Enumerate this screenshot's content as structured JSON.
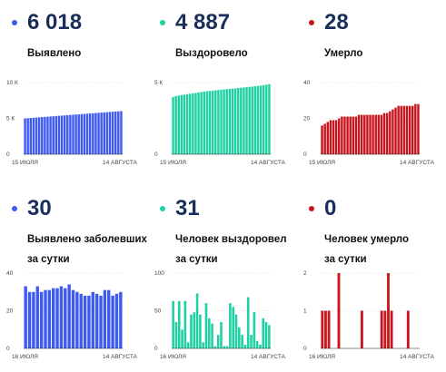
{
  "panels": [
    {
      "color": "#3d5af1",
      "value": "6 018",
      "label_lines": [
        "Выявлено"
      ],
      "chart_data": {
        "type": "bar",
        "ylim": [
          0,
          10000
        ],
        "yticks": [
          {
            "value": 0,
            "label": "0"
          },
          {
            "value": 5000,
            "label": "5 К"
          },
          {
            "value": 10000,
            "label": "10 К"
          }
        ],
        "x_start": "15 ИЮЛЯ",
        "x_end": "14 АВГУСТА",
        "values": [
          4990,
          5030,
          5060,
          5090,
          5120,
          5150,
          5180,
          5210,
          5240,
          5270,
          5300,
          5330,
          5360,
          5390,
          5420,
          5450,
          5480,
          5510,
          5540,
          5570,
          5600,
          5630,
          5660,
          5690,
          5720,
          5750,
          5780,
          5810,
          5840,
          5870,
          5900,
          5930,
          5960,
          5990,
          6018
        ]
      }
    },
    {
      "color": "#1fd0a3",
      "value": "4 887",
      "label_lines": [
        "Выздоровело"
      ],
      "chart_data": {
        "type": "bar",
        "ylim": [
          0,
          5000
        ],
        "yticks": [
          {
            "value": 0,
            "label": "0"
          },
          {
            "value": 5000,
            "label": "5 К"
          }
        ],
        "x_start": "15 ИЮЛЯ",
        "x_end": "14 АВГУСТА",
        "values": [
          3990,
          4060,
          4100,
          4130,
          4160,
          4190,
          4220,
          4250,
          4280,
          4310,
          4340,
          4370,
          4400,
          4420,
          4440,
          4460,
          4480,
          4500,
          4520,
          4540,
          4560,
          4580,
          4600,
          4620,
          4640,
          4660,
          4680,
          4700,
          4720,
          4740,
          4760,
          4790,
          4820,
          4850,
          4887
        ]
      }
    },
    {
      "color": "#c8151d",
      "value": "28",
      "label_lines": [
        "Умерло"
      ],
      "chart_data": {
        "type": "bar",
        "ylim": [
          0,
          40
        ],
        "yticks": [
          {
            "value": 0,
            "label": "0"
          },
          {
            "value": 20,
            "label": "20"
          },
          {
            "value": 40,
            "label": "40"
          }
        ],
        "x_start": "15 ИЮЛЯ",
        "x_end": "14 АВГУСТА",
        "values": [
          16,
          17,
          18,
          19,
          19,
          19,
          20,
          21,
          21,
          21,
          21,
          21,
          21,
          22,
          22,
          22,
          22,
          22,
          22,
          22,
          22,
          22,
          23,
          23,
          24,
          25,
          26,
          27,
          27,
          27,
          27,
          27,
          27,
          28,
          28
        ]
      }
    },
    {
      "color": "#3d5af1",
      "value": "30",
      "label_lines": [
        "Выявлено заболевших",
        "за сутки"
      ],
      "chart_data": {
        "type": "bar",
        "ylim": [
          0,
          40
        ],
        "yticks": [
          {
            "value": 0,
            "label": "0"
          },
          {
            "value": 20,
            "label": "20"
          },
          {
            "value": 40,
            "label": "40"
          }
        ],
        "x_start": "16 ИЮЛЯ",
        "x_end": "14 АВГУСТА",
        "values": [
          33,
          30,
          30,
          33,
          30,
          31,
          31,
          32,
          32,
          33,
          32,
          34,
          31,
          30,
          29,
          28,
          28,
          30,
          29,
          28,
          31,
          31,
          28,
          29,
          30
        ]
      }
    },
    {
      "color": "#1fd0a3",
      "value": "31",
      "label_lines": [
        "Человек выздоровел",
        "за сутки"
      ],
      "chart_data": {
        "type": "bar",
        "ylim": [
          0,
          100
        ],
        "yticks": [
          {
            "value": 0,
            "label": "0"
          },
          {
            "value": 50,
            "label": "50"
          },
          {
            "value": 100,
            "label": "100"
          }
        ],
        "x_start": "16 ИЮЛЯ",
        "x_end": "14 АВГУСТА",
        "values": [
          63,
          35,
          63,
          25,
          63,
          8,
          45,
          48,
          73,
          45,
          8,
          60,
          40,
          33,
          3,
          18,
          35,
          3,
          3,
          60,
          55,
          45,
          28,
          18,
          5,
          68,
          18,
          48,
          10,
          5,
          40,
          35,
          31
        ]
      }
    },
    {
      "color": "#c8151d",
      "value": "0",
      "label_lines": [
        "Человек умерло",
        "за сутки"
      ],
      "chart_data": {
        "type": "bar",
        "ylim": [
          0,
          2
        ],
        "yticks": [
          {
            "value": 0,
            "label": "0"
          },
          {
            "value": 1,
            "label": "1"
          },
          {
            "value": 2,
            "label": "2"
          }
        ],
        "x_start": "16 ИЮЛЯ",
        "x_end": "14 АВГУСТА",
        "values": [
          1,
          1,
          1,
          0,
          0,
          2,
          0,
          0,
          0,
          0,
          0,
          0,
          1,
          0,
          0,
          0,
          0,
          0,
          1,
          1,
          2,
          1,
          0,
          0,
          0,
          0,
          1,
          0,
          0,
          0
        ]
      }
    }
  ]
}
